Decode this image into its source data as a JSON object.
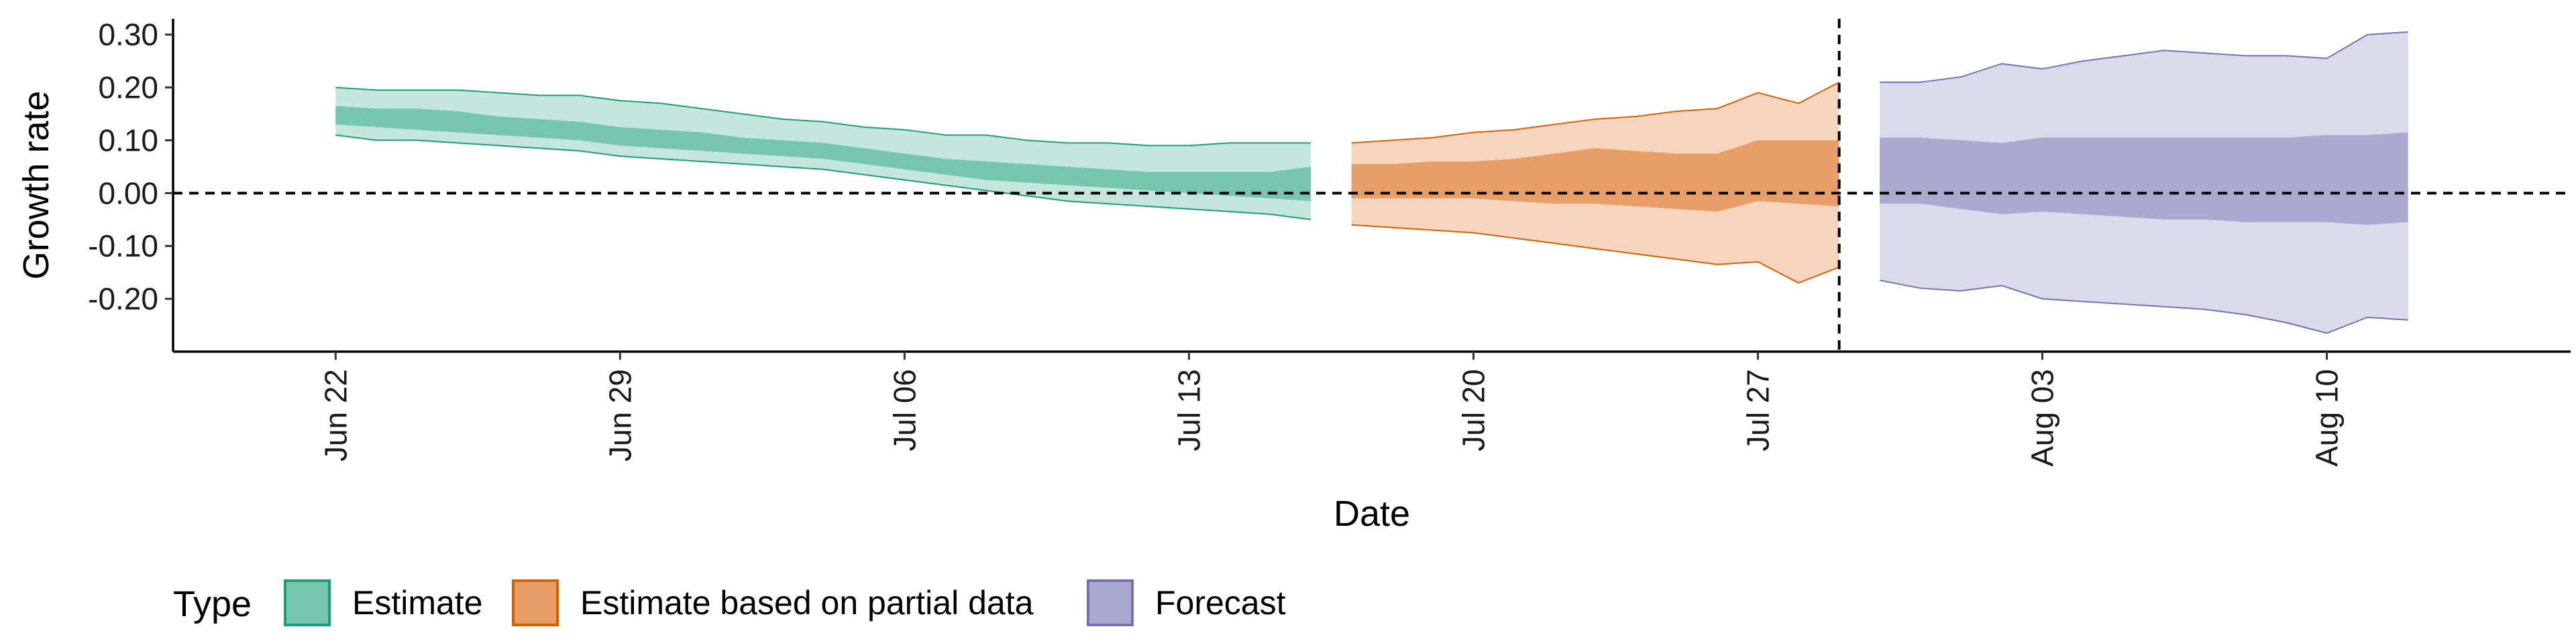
{
  "chart_data": {
    "type": "area",
    "xlabel": "Date",
    "ylabel": "Growth rate",
    "ylim": [
      -0.3,
      0.33
    ],
    "y_ticks": [
      "0.30",
      "0.20",
      "0.10",
      "0.00",
      "-0.10",
      "-0.20"
    ],
    "y_tick_values": [
      0.3,
      0.2,
      0.1,
      0.0,
      -0.1,
      -0.2
    ],
    "x_range": [
      "2020-06-18",
      "2020-08-16"
    ],
    "x_ticks": [
      "Jun 22",
      "Jun 29",
      "Jul 06",
      "Jul 13",
      "Jul 20",
      "Jul 27",
      "Aug 03",
      "Aug 10"
    ],
    "x_tick_dates": [
      "2020-06-22",
      "2020-06-29",
      "2020-07-06",
      "2020-07-13",
      "2020-07-20",
      "2020-07-27",
      "2020-08-03",
      "2020-08-10"
    ],
    "reference_hline": 0.0,
    "reference_vline": "2020-07-29",
    "legend": {
      "title": "Type",
      "position": "bottom"
    },
    "series": [
      {
        "name": "Estimate",
        "color": "#1B9E77",
        "dates": [
          "2020-06-22",
          "2020-06-23",
          "2020-06-24",
          "2020-06-25",
          "2020-06-26",
          "2020-06-27",
          "2020-06-28",
          "2020-06-29",
          "2020-06-30",
          "2020-07-01",
          "2020-07-02",
          "2020-07-03",
          "2020-07-04",
          "2020-07-05",
          "2020-07-06",
          "2020-07-07",
          "2020-07-08",
          "2020-07-09",
          "2020-07-10",
          "2020-07-11",
          "2020-07-12",
          "2020-07-13",
          "2020-07-14",
          "2020-07-15",
          "2020-07-16"
        ],
        "lower90": [
          0.11,
          0.1,
          0.1,
          0.095,
          0.09,
          0.085,
          0.08,
          0.07,
          0.065,
          0.06,
          0.055,
          0.05,
          0.045,
          0.035,
          0.025,
          0.015,
          0.005,
          -0.005,
          -0.015,
          -0.02,
          -0.025,
          -0.03,
          -0.035,
          -0.04,
          -0.05
        ],
        "lower50": [
          0.13,
          0.125,
          0.12,
          0.115,
          0.11,
          0.105,
          0.1,
          0.09,
          0.085,
          0.08,
          0.075,
          0.07,
          0.065,
          0.055,
          0.045,
          0.035,
          0.025,
          0.02,
          0.015,
          0.01,
          0.005,
          0.0,
          -0.005,
          -0.01,
          -0.015
        ],
        "upper50": [
          0.165,
          0.16,
          0.16,
          0.155,
          0.145,
          0.14,
          0.135,
          0.125,
          0.12,
          0.115,
          0.105,
          0.1,
          0.095,
          0.085,
          0.075,
          0.065,
          0.06,
          0.055,
          0.05,
          0.045,
          0.04,
          0.04,
          0.04,
          0.04,
          0.05
        ],
        "upper90": [
          0.2,
          0.195,
          0.195,
          0.195,
          0.19,
          0.185,
          0.185,
          0.175,
          0.17,
          0.16,
          0.15,
          0.14,
          0.135,
          0.125,
          0.12,
          0.11,
          0.11,
          0.1,
          0.095,
          0.095,
          0.09,
          0.09,
          0.095,
          0.095,
          0.095
        ]
      },
      {
        "name": "Estimate based on partial data",
        "color": "#D95F02",
        "dates": [
          "2020-07-17",
          "2020-07-18",
          "2020-07-19",
          "2020-07-20",
          "2020-07-21",
          "2020-07-22",
          "2020-07-23",
          "2020-07-24",
          "2020-07-25",
          "2020-07-26",
          "2020-07-27",
          "2020-07-28",
          "2020-07-29"
        ],
        "lower90": [
          -0.06,
          -0.065,
          -0.07,
          -0.075,
          -0.085,
          -0.095,
          -0.105,
          -0.115,
          -0.125,
          -0.135,
          -0.13,
          -0.17,
          -0.14
        ],
        "lower50": [
          -0.01,
          -0.01,
          -0.01,
          -0.01,
          -0.015,
          -0.02,
          -0.02,
          -0.025,
          -0.03,
          -0.035,
          -0.015,
          -0.02,
          -0.025
        ],
        "upper50": [
          0.055,
          0.055,
          0.06,
          0.06,
          0.065,
          0.075,
          0.085,
          0.08,
          0.075,
          0.075,
          0.1,
          0.1,
          0.1
        ],
        "upper90": [
          0.095,
          0.1,
          0.105,
          0.115,
          0.12,
          0.13,
          0.14,
          0.145,
          0.155,
          0.16,
          0.19,
          0.17,
          0.21
        ]
      },
      {
        "name": "Forecast",
        "color": "#7570B3",
        "dates": [
          "2020-07-30",
          "2020-07-31",
          "2020-08-01",
          "2020-08-02",
          "2020-08-03",
          "2020-08-04",
          "2020-08-05",
          "2020-08-06",
          "2020-08-07",
          "2020-08-08",
          "2020-08-09",
          "2020-08-10",
          "2020-08-11",
          "2020-08-12"
        ],
        "lower90": [
          -0.165,
          -0.18,
          -0.185,
          -0.175,
          -0.2,
          -0.205,
          -0.21,
          -0.215,
          -0.22,
          -0.23,
          -0.245,
          -0.265,
          -0.235,
          -0.24
        ],
        "lower50": [
          -0.02,
          -0.02,
          -0.03,
          -0.04,
          -0.035,
          -0.04,
          -0.045,
          -0.05,
          -0.05,
          -0.055,
          -0.055,
          -0.055,
          -0.06,
          -0.055
        ],
        "upper50": [
          0.105,
          0.105,
          0.1,
          0.095,
          0.105,
          0.105,
          0.105,
          0.105,
          0.105,
          0.105,
          0.105,
          0.11,
          0.11,
          0.115
        ],
        "upper90": [
          0.21,
          0.21,
          0.22,
          0.245,
          0.235,
          0.25,
          0.26,
          0.27,
          0.265,
          0.26,
          0.26,
          0.255,
          0.3,
          0.305
        ]
      }
    ]
  }
}
